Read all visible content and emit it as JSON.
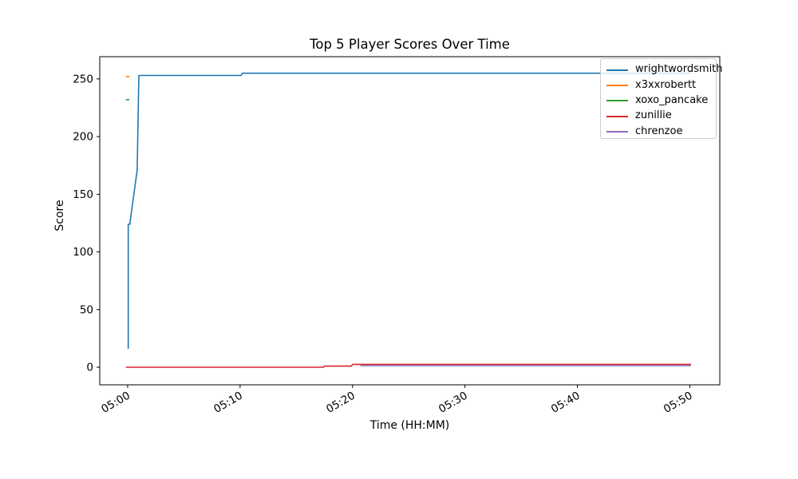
{
  "figure": {
    "title": "Top 5 Player Scores Over Time",
    "xlabel": "Time (HH:MM)",
    "ylabel": "Score"
  },
  "chart_data": {
    "type": "line",
    "title": "Top 5 Player Scores Over Time",
    "xlabel": "Time (HH:MM)",
    "ylabel": "Score",
    "grid": false,
    "legend_position": "upper right",
    "x_unit": "minutes after 05:00",
    "xlim": [
      -2.48,
      52.66
    ],
    "ylim": [
      -15.2,
      269.3
    ],
    "x_ticks": [
      {
        "t": 0,
        "label": "05:00"
      },
      {
        "t": 10,
        "label": "05:10"
      },
      {
        "t": 20,
        "label": "05:20"
      },
      {
        "t": 30,
        "label": "05:30"
      },
      {
        "t": 40,
        "label": "05:40"
      },
      {
        "t": 50,
        "label": "05:50"
      }
    ],
    "y_ticks": [
      {
        "v": 0,
        "label": "0"
      },
      {
        "v": 50,
        "label": "50"
      },
      {
        "v": 100,
        "label": "100"
      },
      {
        "v": 150,
        "label": "150"
      },
      {
        "v": 200,
        "label": "200"
      },
      {
        "v": 250,
        "label": "250"
      }
    ],
    "series": [
      {
        "name": "wrightwordsmith",
        "color": "#1f77b4",
        "points": [
          [
            0.05,
            16
          ],
          [
            0.05,
            124
          ],
          [
            0.2,
            124
          ],
          [
            0.22,
            126
          ],
          [
            0.85,
            171
          ],
          [
            1.0,
            253
          ],
          [
            10.1,
            253
          ],
          [
            10.2,
            255
          ],
          [
            50.1,
            255
          ]
        ]
      },
      {
        "name": "x3xxrobertt",
        "color": "#ff7f0e",
        "points": [
          [
            -0.15,
            252
          ],
          [
            0.15,
            252
          ]
        ]
      },
      {
        "name": "xoxo_pancake",
        "color": "#2ca02c",
        "points": [
          [
            -0.15,
            232
          ],
          [
            0.15,
            232
          ]
        ]
      },
      {
        "name": "zunillie",
        "color": "#d62728",
        "points": [
          [
            -0.15,
            0
          ],
          [
            17.4,
            0
          ],
          [
            17.5,
            1
          ],
          [
            19.9,
            1
          ],
          [
            20.0,
            2.5
          ],
          [
            50.1,
            2.5
          ]
        ]
      },
      {
        "name": "chrenzoe",
        "color": "#9467bd",
        "points": [
          [
            20.7,
            1.4
          ],
          [
            50.1,
            1.4
          ]
        ]
      }
    ]
  }
}
